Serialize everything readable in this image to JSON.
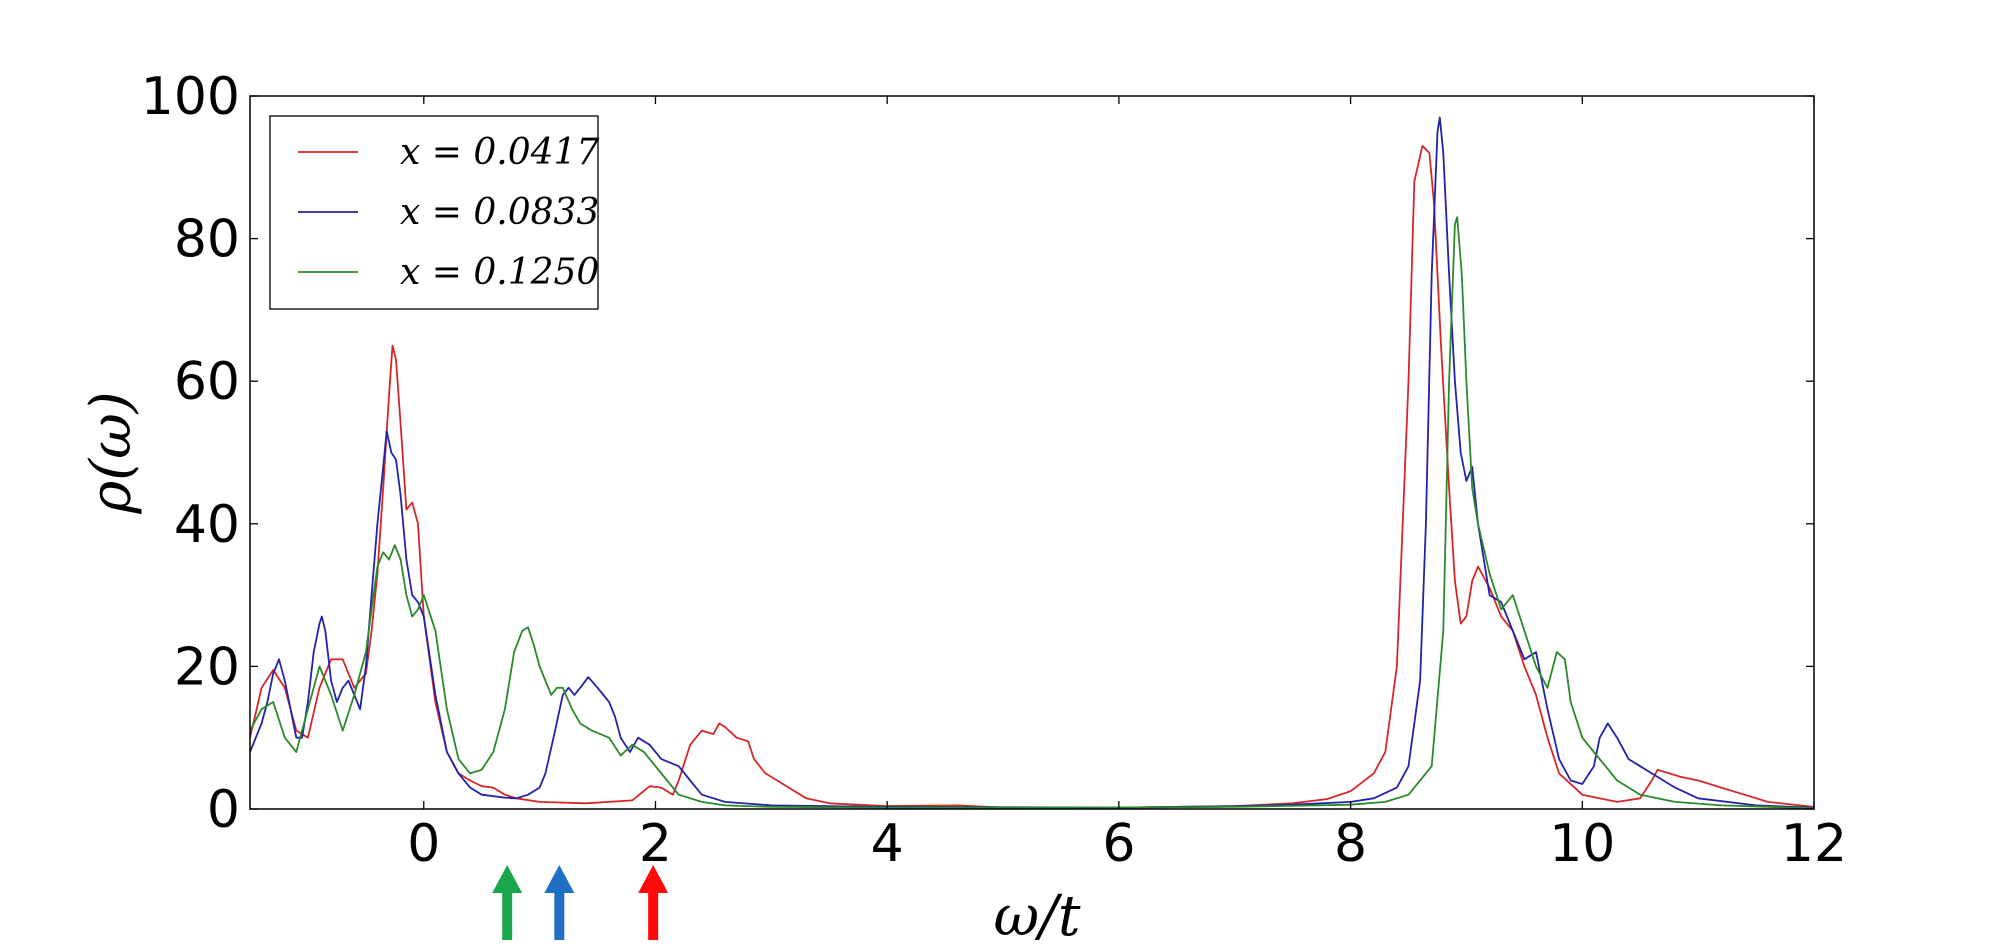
{
  "chart_data": {
    "type": "line",
    "xlabel": "ω/t",
    "ylabel": "ρ(ω)",
    "xlim": [
      -1.5,
      12
    ],
    "ylim": [
      0,
      100
    ],
    "xticks": [
      "0",
      "2",
      "4",
      "6",
      "8",
      "10",
      "12"
    ],
    "yticks": [
      "0",
      "20",
      "40",
      "60",
      "80",
      "100"
    ],
    "grid": false,
    "legend_position": "top-left",
    "series": [
      {
        "name": "x = 0.0417",
        "color": "#d62728",
        "points": [
          [
            -1.5,
            10
          ],
          [
            -1.4,
            17
          ],
          [
            -1.3,
            19.5
          ],
          [
            -1.2,
            17
          ],
          [
            -1.1,
            11
          ],
          [
            -1.0,
            10
          ],
          [
            -0.9,
            17
          ],
          [
            -0.8,
            21
          ],
          [
            -0.7,
            21
          ],
          [
            -0.6,
            17
          ],
          [
            -0.5,
            19
          ],
          [
            -0.45,
            25
          ],
          [
            -0.4,
            33
          ],
          [
            -0.35,
            45
          ],
          [
            -0.3,
            58
          ],
          [
            -0.27,
            65
          ],
          [
            -0.24,
            63
          ],
          [
            -0.2,
            54
          ],
          [
            -0.15,
            42
          ],
          [
            -0.1,
            43
          ],
          [
            -0.05,
            40
          ],
          [
            0.0,
            27
          ],
          [
            0.1,
            15
          ],
          [
            0.2,
            8
          ],
          [
            0.3,
            5
          ],
          [
            0.4,
            4
          ],
          [
            0.5,
            3.2
          ],
          [
            0.6,
            3
          ],
          [
            0.7,
            2
          ],
          [
            0.8,
            1.5
          ],
          [
            1.0,
            1
          ],
          [
            1.4,
            0.8
          ],
          [
            1.8,
            1.2
          ],
          [
            1.95,
            3.2
          ],
          [
            2.05,
            3
          ],
          [
            2.15,
            2
          ],
          [
            2.2,
            4
          ],
          [
            2.3,
            9
          ],
          [
            2.4,
            11
          ],
          [
            2.5,
            10.5
          ],
          [
            2.55,
            12
          ],
          [
            2.6,
            11.5
          ],
          [
            2.7,
            10
          ],
          [
            2.8,
            9.5
          ],
          [
            2.85,
            7
          ],
          [
            2.95,
            5
          ],
          [
            3.1,
            3.5
          ],
          [
            3.3,
            1.5
          ],
          [
            3.5,
            0.8
          ],
          [
            4.0,
            0.4
          ],
          [
            4.6,
            0.5
          ],
          [
            5.0,
            0.2
          ],
          [
            6.0,
            0.2
          ],
          [
            7.0,
            0.4
          ],
          [
            7.5,
            0.8
          ],
          [
            7.8,
            1.4
          ],
          [
            8.0,
            2.5
          ],
          [
            8.2,
            5
          ],
          [
            8.3,
            8
          ],
          [
            8.4,
            20
          ],
          [
            8.5,
            60
          ],
          [
            8.55,
            88
          ],
          [
            8.62,
            93
          ],
          [
            8.68,
            92
          ],
          [
            8.72,
            85
          ],
          [
            8.78,
            65
          ],
          [
            8.85,
            45
          ],
          [
            8.9,
            32
          ],
          [
            8.95,
            26
          ],
          [
            9.0,
            27
          ],
          [
            9.05,
            32
          ],
          [
            9.1,
            34
          ],
          [
            9.2,
            31
          ],
          [
            9.3,
            27
          ],
          [
            9.4,
            25
          ],
          [
            9.5,
            20
          ],
          [
            9.6,
            16
          ],
          [
            9.7,
            10
          ],
          [
            9.8,
            5
          ],
          [
            10.0,
            2
          ],
          [
            10.3,
            1
          ],
          [
            10.5,
            1.5
          ],
          [
            10.6,
            4
          ],
          [
            10.65,
            5.5
          ],
          [
            10.75,
            5
          ],
          [
            10.85,
            4.5
          ],
          [
            11.0,
            4
          ],
          [
            11.1,
            3.5
          ],
          [
            11.2,
            3
          ],
          [
            11.3,
            2.5
          ],
          [
            11.4,
            2
          ],
          [
            11.6,
            1
          ],
          [
            12.0,
            0.3
          ]
        ]
      },
      {
        "name": "x = 0.0833",
        "color": "#2222aa",
        "points": [
          [
            -1.5,
            8
          ],
          [
            -1.4,
            12
          ],
          [
            -1.35,
            15
          ],
          [
            -1.3,
            19
          ],
          [
            -1.25,
            21
          ],
          [
            -1.2,
            18
          ],
          [
            -1.1,
            10
          ],
          [
            -1.05,
            10
          ],
          [
            -1.0,
            15
          ],
          [
            -0.95,
            22
          ],
          [
            -0.9,
            26
          ],
          [
            -0.88,
            27
          ],
          [
            -0.85,
            25
          ],
          [
            -0.8,
            18
          ],
          [
            -0.75,
            15
          ],
          [
            -0.7,
            17
          ],
          [
            -0.65,
            18
          ],
          [
            -0.6,
            16
          ],
          [
            -0.55,
            14
          ],
          [
            -0.5,
            20
          ],
          [
            -0.45,
            30
          ],
          [
            -0.4,
            40
          ],
          [
            -0.35,
            48
          ],
          [
            -0.32,
            53
          ],
          [
            -0.28,
            50
          ],
          [
            -0.24,
            49
          ],
          [
            -0.2,
            44
          ],
          [
            -0.15,
            35
          ],
          [
            -0.1,
            30
          ],
          [
            -0.05,
            29
          ],
          [
            0.0,
            27
          ],
          [
            0.1,
            16
          ],
          [
            0.2,
            8
          ],
          [
            0.3,
            5
          ],
          [
            0.4,
            3
          ],
          [
            0.5,
            2
          ],
          [
            0.7,
            1.6
          ],
          [
            0.8,
            1.5
          ],
          [
            0.9,
            2
          ],
          [
            1.0,
            3
          ],
          [
            1.05,
            5
          ],
          [
            1.12,
            10
          ],
          [
            1.2,
            16
          ],
          [
            1.25,
            17
          ],
          [
            1.3,
            16
          ],
          [
            1.35,
            17
          ],
          [
            1.42,
            18.5
          ],
          [
            1.5,
            17
          ],
          [
            1.6,
            15
          ],
          [
            1.65,
            13
          ],
          [
            1.7,
            10
          ],
          [
            1.78,
            8
          ],
          [
            1.85,
            10
          ],
          [
            1.95,
            9
          ],
          [
            2.05,
            7
          ],
          [
            2.2,
            6
          ],
          [
            2.3,
            4
          ],
          [
            2.4,
            2
          ],
          [
            2.6,
            1
          ],
          [
            3.0,
            0.5
          ],
          [
            4.0,
            0.3
          ],
          [
            6.0,
            0.2
          ],
          [
            7.0,
            0.4
          ],
          [
            7.5,
            0.6
          ],
          [
            8.0,
            1
          ],
          [
            8.2,
            1.5
          ],
          [
            8.4,
            3
          ],
          [
            8.5,
            6
          ],
          [
            8.6,
            18
          ],
          [
            8.65,
            40
          ],
          [
            8.7,
            75
          ],
          [
            8.75,
            95
          ],
          [
            8.77,
            97
          ],
          [
            8.8,
            92
          ],
          [
            8.85,
            75
          ],
          [
            8.9,
            60
          ],
          [
            8.95,
            50
          ],
          [
            9.0,
            46
          ],
          [
            9.05,
            48
          ],
          [
            9.1,
            40
          ],
          [
            9.15,
            35
          ],
          [
            9.2,
            30
          ],
          [
            9.3,
            29
          ],
          [
            9.35,
            27
          ],
          [
            9.45,
            23
          ],
          [
            9.5,
            21
          ],
          [
            9.6,
            22
          ],
          [
            9.7,
            14
          ],
          [
            9.8,
            7
          ],
          [
            9.9,
            4
          ],
          [
            10.0,
            3.5
          ],
          [
            10.1,
            6
          ],
          [
            10.15,
            10
          ],
          [
            10.22,
            12
          ],
          [
            10.3,
            10
          ],
          [
            10.4,
            7
          ],
          [
            10.5,
            6
          ],
          [
            10.6,
            5
          ],
          [
            10.7,
            4
          ],
          [
            10.8,
            3
          ],
          [
            11.0,
            1.5
          ],
          [
            11.5,
            0.5
          ],
          [
            12.0,
            0.2
          ]
        ]
      },
      {
        "name": "x = 0.1250",
        "color": "#2a8a2a",
        "points": [
          [
            -1.5,
            11
          ],
          [
            -1.4,
            14
          ],
          [
            -1.3,
            15
          ],
          [
            -1.2,
            10
          ],
          [
            -1.1,
            8
          ],
          [
            -1.0,
            14
          ],
          [
            -0.9,
            20
          ],
          [
            -0.8,
            16
          ],
          [
            -0.7,
            11
          ],
          [
            -0.6,
            16
          ],
          [
            -0.5,
            22
          ],
          [
            -0.45,
            28
          ],
          [
            -0.4,
            34
          ],
          [
            -0.35,
            36
          ],
          [
            -0.3,
            35
          ],
          [
            -0.25,
            37
          ],
          [
            -0.2,
            35
          ],
          [
            -0.15,
            30
          ],
          [
            -0.1,
            27
          ],
          [
            -0.05,
            28
          ],
          [
            0.0,
            30
          ],
          [
            0.1,
            25
          ],
          [
            0.2,
            14
          ],
          [
            0.3,
            7
          ],
          [
            0.4,
            5
          ],
          [
            0.5,
            5.5
          ],
          [
            0.6,
            8
          ],
          [
            0.7,
            14
          ],
          [
            0.78,
            22
          ],
          [
            0.85,
            25
          ],
          [
            0.9,
            25.5
          ],
          [
            0.95,
            23
          ],
          [
            1.0,
            20
          ],
          [
            1.1,
            16
          ],
          [
            1.15,
            17
          ],
          [
            1.2,
            17
          ],
          [
            1.28,
            14
          ],
          [
            1.35,
            12
          ],
          [
            1.45,
            11
          ],
          [
            1.6,
            10
          ],
          [
            1.7,
            7.5
          ],
          [
            1.8,
            9
          ],
          [
            1.9,
            8
          ],
          [
            2.0,
            6
          ],
          [
            2.1,
            4
          ],
          [
            2.2,
            2
          ],
          [
            2.4,
            1
          ],
          [
            2.6,
            0.5
          ],
          [
            3.0,
            0.3
          ],
          [
            4.0,
            0.2
          ],
          [
            6.0,
            0.2
          ],
          [
            7.0,
            0.3
          ],
          [
            8.0,
            0.6
          ],
          [
            8.3,
            1
          ],
          [
            8.5,
            2
          ],
          [
            8.7,
            6
          ],
          [
            8.8,
            25
          ],
          [
            8.85,
            60
          ],
          [
            8.9,
            82
          ],
          [
            8.92,
            83
          ],
          [
            8.96,
            75
          ],
          [
            9.0,
            60
          ],
          [
            9.05,
            45
          ],
          [
            9.1,
            40
          ],
          [
            9.2,
            33
          ],
          [
            9.3,
            28
          ],
          [
            9.4,
            30
          ],
          [
            9.5,
            25
          ],
          [
            9.6,
            20
          ],
          [
            9.7,
            17
          ],
          [
            9.78,
            22
          ],
          [
            9.85,
            21
          ],
          [
            9.9,
            15
          ],
          [
            10.0,
            10
          ],
          [
            10.1,
            8
          ],
          [
            10.2,
            6
          ],
          [
            10.3,
            4
          ],
          [
            10.5,
            2
          ],
          [
            10.8,
            1
          ],
          [
            11.2,
            0.5
          ],
          [
            12.0,
            0.1
          ]
        ]
      }
    ],
    "annotations": [
      {
        "type": "arrow",
        "x": 0.72,
        "color": "#1aa64a"
      },
      {
        "type": "arrow",
        "x": 1.17,
        "color": "#1f6fc4"
      },
      {
        "type": "arrow",
        "x": 1.98,
        "color": "#ff0a0a"
      }
    ]
  }
}
